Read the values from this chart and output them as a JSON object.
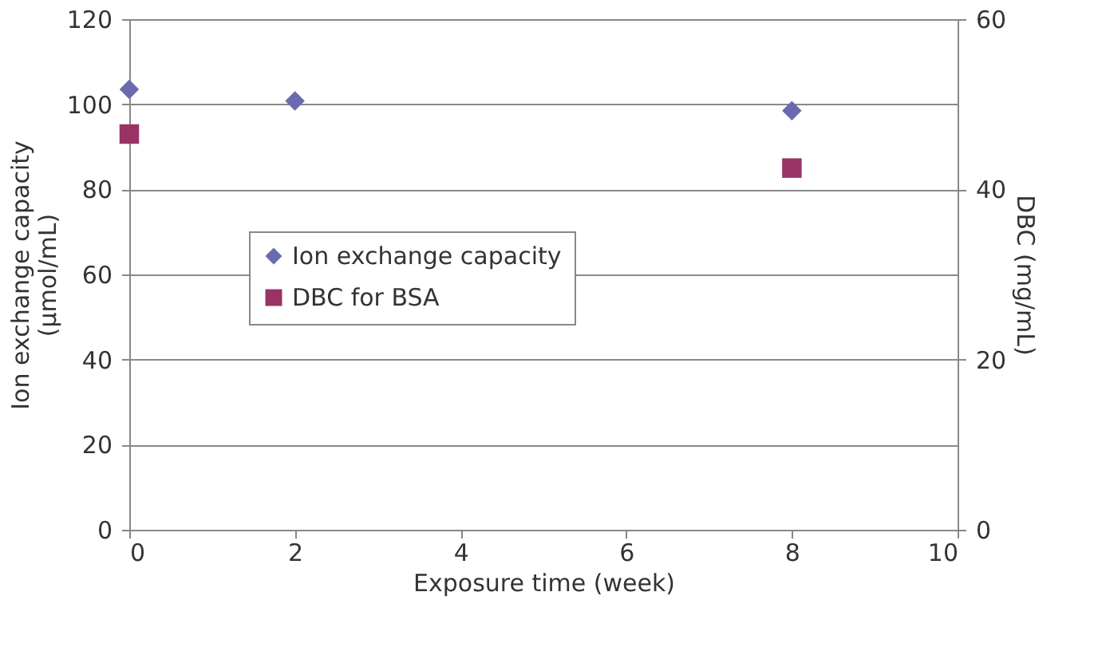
{
  "chart_data": {
    "type": "scatter",
    "xlabel": "Exposure time (week)",
    "ylabel": "Ion exchange capacity\n(µmol/mL)",
    "y2label": "DBC (mg/mL)",
    "xlim": [
      0,
      10
    ],
    "xticks": [
      0,
      2,
      4,
      6,
      8,
      10
    ],
    "ylim": [
      0,
      120
    ],
    "yticks": [
      0,
      20,
      40,
      60,
      80,
      100,
      120
    ],
    "y2lim": [
      0,
      60
    ],
    "y2ticks": [
      0,
      20,
      40,
      60
    ],
    "grid": "y",
    "legend": "left",
    "series": [
      {
        "name": "Ion exchange capacity",
        "color": "#6a6aae",
        "marker": "diamond",
        "x": [
          0,
          2,
          8
        ],
        "values": [
          103.5,
          100.8,
          98.5
        ]
      },
      {
        "name": "DBC for BSA",
        "color": "#993366",
        "marker": "square",
        "axis": "y2",
        "x": [
          0,
          8
        ],
        "values": [
          46.5,
          42.5
        ]
      }
    ]
  }
}
